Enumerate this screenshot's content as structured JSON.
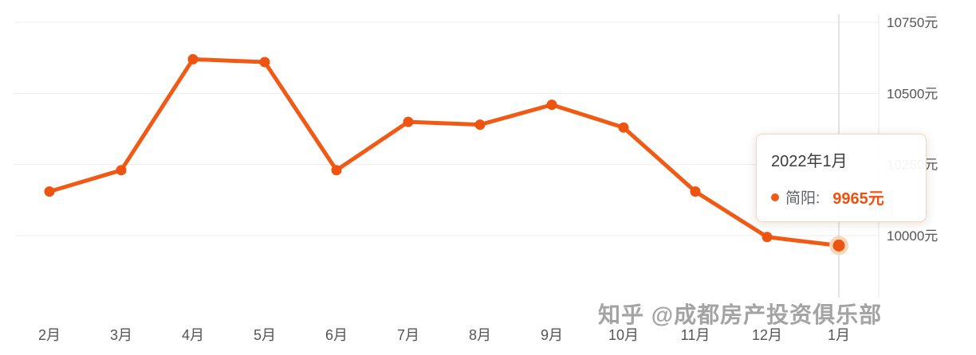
{
  "chart_data": {
    "type": "line",
    "title": "",
    "categories": [
      "2月",
      "3月",
      "4月",
      "5月",
      "6月",
      "7月",
      "8月",
      "9月",
      "10月",
      "11月",
      "12月",
      "1月"
    ],
    "series": [
      {
        "name": "简阳",
        "values": [
          10155,
          10230,
          10620,
          10610,
          10230,
          10400,
          10390,
          10460,
          10380,
          10155,
          9995,
          9965
        ]
      }
    ],
    "y_ticks": [
      {
        "value": 10750,
        "label": "10750元"
      },
      {
        "value": 10500,
        "label": "10500元"
      },
      {
        "value": 10250,
        "label": "10250元"
      },
      {
        "value": 10000,
        "label": "10000元"
      }
    ],
    "ylim": [
      9900,
      10790
    ],
    "grid": true,
    "legend_position": "none",
    "selected_index": 11,
    "selected_label": "2022年1月"
  },
  "tooltip": {
    "title": "2022年1月",
    "series_name": "简阳:",
    "value": "9965元"
  },
  "watermark": "知乎 @成都房产投资俱乐部",
  "colors": {
    "line": "#f05a14",
    "point": "#ee5410",
    "halo": "#fad7ba",
    "value_text": "#f0500f",
    "grid": "#ededed",
    "axis_line": "#e6e6e6",
    "crosshair": "#c9c9c9",
    "axis_label": "#555555",
    "tooltip_border": "#f3d7bd"
  }
}
